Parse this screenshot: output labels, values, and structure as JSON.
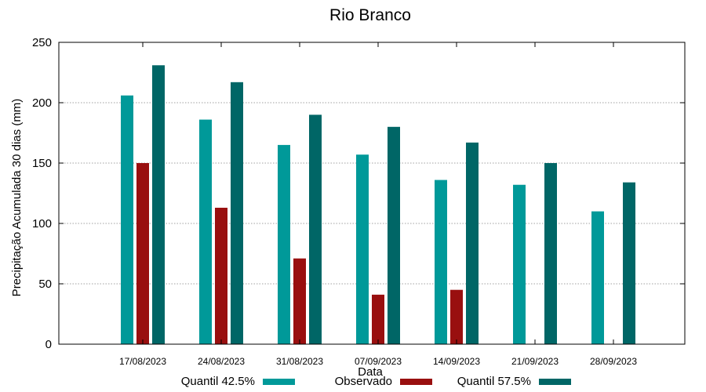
{
  "chart_data": {
    "type": "bar",
    "title": "Rio Branco",
    "xlabel": "Data",
    "ylabel": "Precipitação Acumulada 30 dias (mm)",
    "ylim": [
      0,
      250
    ],
    "yticks": [
      0,
      50,
      100,
      150,
      200,
      250
    ],
    "grid": true,
    "legend_position": "bottom",
    "categories": [
      "17/08/2023",
      "24/08/2023",
      "31/08/2023",
      "07/09/2023",
      "14/09/2023",
      "21/09/2023",
      "28/09/2023"
    ],
    "series": [
      {
        "name": "Quantil 42.5%",
        "color": "#009999",
        "values": [
          206,
          186,
          165,
          157,
          136,
          132,
          110
        ]
      },
      {
        "name": "Observado",
        "color": "#990f0f",
        "values": [
          150,
          113,
          71,
          41,
          45,
          null,
          null
        ]
      },
      {
        "name": "Quantil 57.5%",
        "color": "#006666",
        "values": [
          231,
          217,
          190,
          180,
          167,
          150,
          134
        ]
      }
    ]
  }
}
